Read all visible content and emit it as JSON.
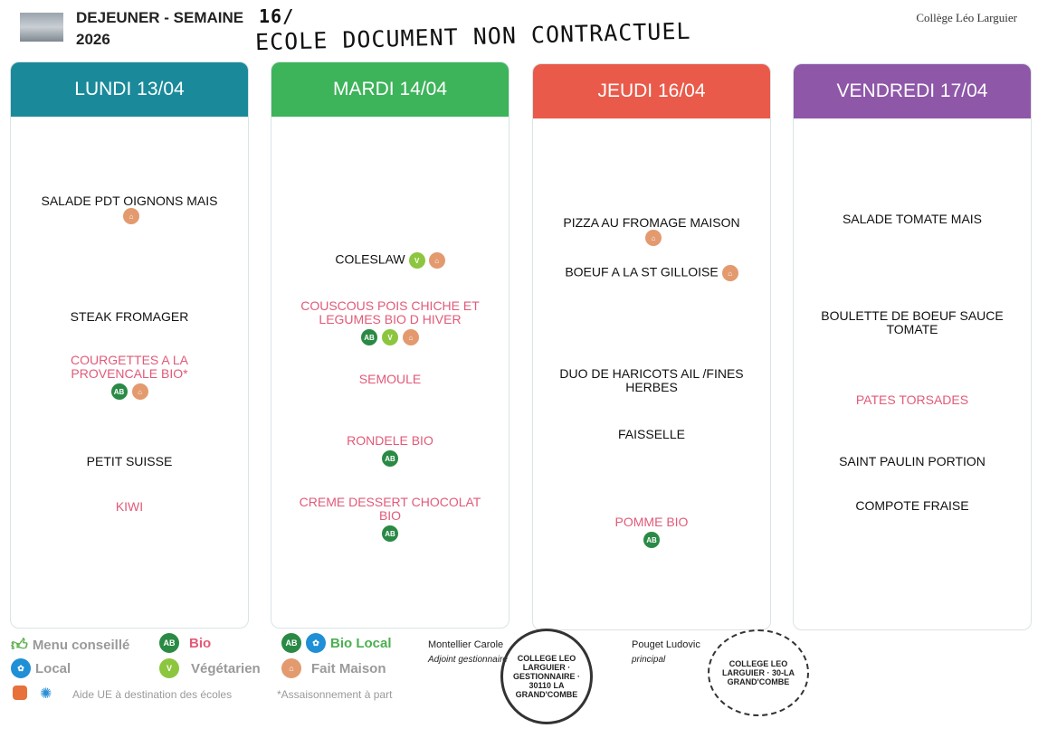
{
  "header": {
    "title_line1": "DEJEUNER - SEMAINE",
    "week_handwritten": "16/",
    "title_line2": "2026",
    "handwritten_note": "ECOLE DOCUMENT NON CONTRACTUEL",
    "college": "Collège Léo Larguier"
  },
  "colors": {
    "lundi": "#1a8a9a",
    "mardi": "#3db35a",
    "jeudi": "#ea5a4a",
    "vendredi": "#8e57a8",
    "bio_text": "#e25a78"
  },
  "days": [
    {
      "label": "LUNDI 13/04",
      "items": [
        {
          "text": "SALADE PDT OIGNONS MAIS",
          "pink": false,
          "icons": [
            "fait-maison"
          ]
        },
        {
          "text": "STEAK FROMAGER",
          "pink": false,
          "icons": []
        },
        {
          "text": "COURGETTES A LA PROVENCALE BIO*",
          "pink": true,
          "icons": [
            "bio",
            "fait-maison"
          ]
        },
        {
          "text": "PETIT SUISSE",
          "pink": false,
          "icons": []
        },
        {
          "text": "KIWI",
          "pink": true,
          "icons": []
        }
      ]
    },
    {
      "label": "MARDI 14/04",
      "items": [
        {
          "text": "COLESLAW",
          "pink": false,
          "icons": [
            "vegetarien",
            "fait-maison"
          ]
        },
        {
          "text": "COUSCOUS POIS CHICHE ET LEGUMES BIO D HIVER",
          "pink": true,
          "icons": [
            "bio",
            "vegetarien",
            "fait-maison"
          ]
        },
        {
          "text": "SEMOULE",
          "pink": true,
          "icons": []
        },
        {
          "text": "RONDELE BIO",
          "pink": true,
          "icons": [
            "bio"
          ]
        },
        {
          "text": "CREME DESSERT CHOCOLAT BIO",
          "pink": true,
          "icons": [
            "bio"
          ]
        }
      ]
    },
    {
      "label": "JEUDI 16/04",
      "items": [
        {
          "text": "PIZZA AU FROMAGE MAISON",
          "pink": false,
          "icons": [
            "fait-maison"
          ]
        },
        {
          "text": "BOEUF A LA ST GILLOISE",
          "pink": false,
          "icons": [
            "fait-maison"
          ]
        },
        {
          "text": "DUO DE HARICOTS AIL /FINES HERBES",
          "pink": false,
          "icons": []
        },
        {
          "text": "FAISSELLE",
          "pink": false,
          "icons": []
        },
        {
          "text": "POMME BIO",
          "pink": true,
          "icons": [
            "bio"
          ]
        }
      ]
    },
    {
      "label": "VENDREDI 17/04",
      "items": [
        {
          "text": "SALADE TOMATE MAIS",
          "pink": false,
          "icons": []
        },
        {
          "text": "BOULETTE DE BOEUF SAUCE TOMATE",
          "pink": false,
          "icons": []
        },
        {
          "text": "PATES TORSADES",
          "pink": true,
          "icons": []
        },
        {
          "text": "SAINT PAULIN PORTION",
          "pink": false,
          "icons": []
        },
        {
          "text": "COMPOTE FRAISE",
          "pink": false,
          "icons": []
        }
      ]
    }
  ],
  "legend": {
    "menu_conseille": "Menu conseillé",
    "bio": "Bio",
    "bio_local": "Bio Local",
    "local": "Local",
    "vegetarien": "Végétarien",
    "fait_maison": "Fait Maison",
    "aide_ue": "Aide UE à destination des écoles",
    "assaisonnement": "*Assaisonnement à part"
  },
  "signatures": [
    {
      "name": "Montellier Carole",
      "role": "Adjoint gestionnaire",
      "stamp": "COLLEGE LEO LARGUIER · GESTIONNAIRE · 30110 LA GRAND'COMBE"
    },
    {
      "name": "Pouget Ludovic",
      "role": "principal",
      "stamp": "COLLEGE LEO LARGUIER · 30-LA GRAND'COMBE"
    }
  ]
}
